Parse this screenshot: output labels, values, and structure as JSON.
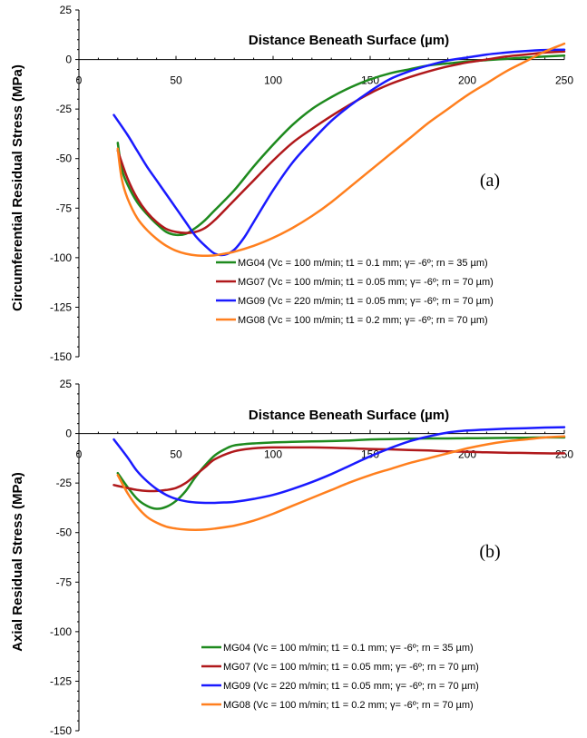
{
  "chart_data": [
    {
      "type": "line",
      "panel_label": "(a)",
      "xlabel": "Distance Beneath Surface (µm)",
      "ylabel": "Circumferential Residual Stress (MPa)",
      "xlim": [
        0,
        250
      ],
      "ylim": [
        -150,
        25
      ],
      "xticks": [
        "0",
        "50",
        "100",
        "150",
        "200",
        "250"
      ],
      "yticks": [
        "25",
        "0",
        "-25",
        "-50",
        "-75",
        "-100",
        "-125",
        "-150"
      ],
      "grid": false,
      "legend_position": "bottom-right",
      "series": [
        {
          "name": "MG04 (Vc = 100 m/min; t1 = 0.1 mm; γ= -6º; rn = 35 µm)",
          "color": "#1e8a1e",
          "x": [
            20,
            22,
            25,
            30,
            35,
            40,
            45,
            50,
            55,
            60,
            65,
            70,
            80,
            90,
            100,
            110,
            120,
            130,
            140,
            150,
            160,
            170,
            180,
            190,
            200,
            210,
            220,
            230,
            240,
            250
          ],
          "y": [
            -42,
            -55,
            -63,
            -72,
            -78,
            -83,
            -87,
            -88.5,
            -88,
            -85,
            -81,
            -76,
            -66,
            -54,
            -43,
            -33,
            -25,
            -19,
            -14,
            -10,
            -7,
            -5,
            -3,
            -2,
            -1,
            -0.3,
            0.3,
            1,
            1.5,
            2
          ]
        },
        {
          "name": "MG07 (Vc = 100 m/min; t1 = 0.05 mm; γ= -6º; rn = 70 µm)",
          "color": "#b0181b",
          "x": [
            20,
            25,
            30,
            35,
            40,
            45,
            50,
            55,
            60,
            65,
            70,
            80,
            90,
            100,
            110,
            120,
            130,
            140,
            150,
            160,
            170,
            180,
            190,
            200,
            210,
            220,
            230,
            240,
            250
          ],
          "y": [
            -46,
            -60,
            -70,
            -77,
            -82,
            -85.5,
            -87,
            -87.5,
            -87,
            -85,
            -81,
            -71,
            -61,
            -51,
            -42,
            -35,
            -28.5,
            -22.5,
            -17,
            -12.5,
            -9,
            -6,
            -3.5,
            -1.5,
            0,
            1.5,
            2.5,
            3.5,
            4
          ]
        },
        {
          "name": "MG09 (Vc = 220 m/min; t1 = 0.05 mm; γ= -6º; rn = 70 µm)",
          "color": "#1a1aff",
          "x": [
            18,
            25,
            30,
            35,
            40,
            45,
            50,
            55,
            60,
            65,
            70,
            75,
            80,
            85,
            90,
            100,
            110,
            120,
            130,
            140,
            150,
            160,
            170,
            180,
            190,
            200,
            210,
            220,
            230,
            240,
            250
          ],
          "y": [
            -28,
            -38,
            -46,
            -54,
            -61,
            -68,
            -75,
            -82,
            -89,
            -94,
            -98,
            -98.5,
            -96,
            -90,
            -82,
            -66,
            -52,
            -41,
            -31,
            -23,
            -16,
            -10,
            -6,
            -3,
            -0.5,
            1,
            2.5,
            3.5,
            4.3,
            4.8,
            5
          ]
        },
        {
          "name": "MG08 (Vc = 100 m/min; t1 = 0.2 mm; γ= -6º; rn = 70 µm)",
          "color": "#ff7f1e",
          "x": [
            20,
            22,
            25,
            30,
            35,
            40,
            45,
            50,
            55,
            60,
            65,
            70,
            75,
            80,
            90,
            100,
            110,
            120,
            130,
            140,
            150,
            160,
            170,
            180,
            190,
            200,
            210,
            220,
            230,
            240,
            250
          ],
          "y": [
            -45,
            -60,
            -70,
            -80,
            -86,
            -90.5,
            -94,
            -96.5,
            -98,
            -98.8,
            -99,
            -98.8,
            -98,
            -97,
            -94,
            -90,
            -85,
            -79,
            -72,
            -64,
            -56,
            -48,
            -40,
            -32,
            -25,
            -18,
            -12,
            -6,
            -1,
            4,
            8
          ]
        }
      ]
    },
    {
      "type": "line",
      "panel_label": "(b)",
      "xlabel": "Distance Beneath Surface (µm)",
      "ylabel": "Axial Residual Stress (MPa)",
      "xlim": [
        0,
        250
      ],
      "ylim": [
        -150,
        25
      ],
      "xticks": [
        "0",
        "50",
        "100",
        "150",
        "200",
        "250"
      ],
      "yticks": [
        "25",
        "0",
        "-25",
        "-50",
        "-75",
        "-100",
        "-125",
        "-150"
      ],
      "grid": false,
      "legend_position": "bottom-right",
      "series": [
        {
          "name": "MG04 (Vc = 100 m/min; t1 = 0.1 mm; γ= -6º; rn = 35 µm)",
          "color": "#1e8a1e",
          "x": [
            20,
            25,
            30,
            35,
            40,
            45,
            50,
            55,
            60,
            65,
            70,
            75,
            80,
            90,
            100,
            110,
            120,
            130,
            140,
            150,
            160,
            170,
            180,
            190,
            200,
            210,
            220,
            230,
            240,
            250
          ],
          "y": [
            -20,
            -27,
            -33,
            -36.5,
            -38,
            -37,
            -34,
            -29,
            -22,
            -16,
            -11,
            -8,
            -6,
            -5,
            -4.5,
            -4.2,
            -4,
            -3.8,
            -3.5,
            -3,
            -2.8,
            -2.6,
            -2.5,
            -2.5,
            -2.4,
            -2.3,
            -2.2,
            -2.1,
            -2,
            -2
          ]
        },
        {
          "name": "MG07 (Vc = 100 m/min; t1 = 0.05 mm; γ= -6º; rn = 70 µm)",
          "color": "#b0181b",
          "x": [
            18,
            25,
            30,
            35,
            40,
            45,
            50,
            55,
            60,
            65,
            70,
            80,
            90,
            100,
            110,
            120,
            130,
            140,
            150,
            160,
            170,
            180,
            190,
            200,
            210,
            220,
            230,
            240,
            250
          ],
          "y": [
            -26,
            -27.5,
            -28.5,
            -29,
            -29,
            -28.5,
            -27.5,
            -25,
            -21,
            -17,
            -13,
            -9,
            -7.5,
            -7,
            -7,
            -7,
            -7.2,
            -7.5,
            -7.8,
            -8,
            -8.3,
            -8.6,
            -9,
            -9.2,
            -9.5,
            -9.7,
            -9.8,
            -10,
            -10
          ]
        },
        {
          "name": "MG09 (Vc = 220 m/min; t1 = 0.05 mm; γ= -6º; rn = 70 µm)",
          "color": "#1a1aff",
          "x": [
            18,
            25,
            30,
            35,
            40,
            45,
            50,
            55,
            60,
            65,
            70,
            75,
            80,
            90,
            100,
            110,
            120,
            130,
            140,
            150,
            160,
            170,
            180,
            190,
            200,
            210,
            220,
            230,
            240,
            250
          ],
          "y": [
            -3,
            -12,
            -19,
            -24,
            -28,
            -31,
            -33,
            -34.2,
            -34.8,
            -35,
            -35,
            -34.8,
            -34.5,
            -33,
            -31,
            -28,
            -24.5,
            -20.5,
            -16,
            -11.5,
            -7.5,
            -4,
            -1.5,
            0.5,
            1.5,
            2,
            2.4,
            2.7,
            3,
            3.2
          ]
        },
        {
          "name": "MG08 (Vc = 100 m/min; t1 = 0.2 mm; γ= -6º; rn = 70 µm)",
          "color": "#ff7f1e",
          "x": [
            20,
            25,
            30,
            35,
            40,
            45,
            50,
            55,
            60,
            65,
            70,
            80,
            90,
            100,
            110,
            120,
            130,
            140,
            150,
            160,
            170,
            180,
            190,
            200,
            210,
            220,
            230,
            240,
            250
          ],
          "y": [
            -21,
            -30,
            -37,
            -42,
            -45,
            -47,
            -48,
            -48.5,
            -48.6,
            -48.5,
            -48,
            -46.5,
            -44,
            -40.5,
            -36.5,
            -32.5,
            -28.5,
            -24.5,
            -21,
            -18,
            -15,
            -12.5,
            -10,
            -7.5,
            -5.5,
            -4,
            -3,
            -2,
            -1.5
          ]
        }
      ]
    }
  ]
}
